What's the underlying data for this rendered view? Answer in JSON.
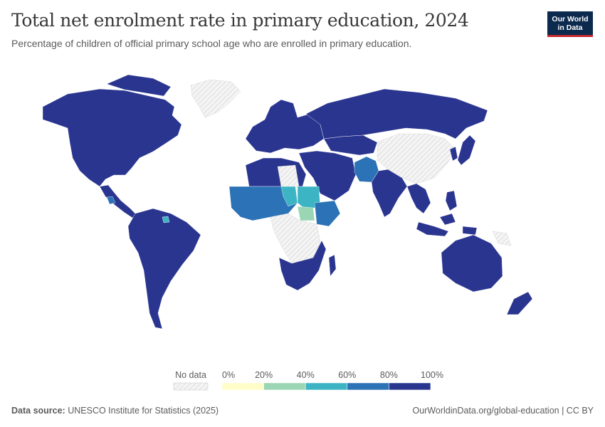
{
  "header": {
    "title": "Total net enrolment rate in primary education, 2024",
    "subtitle": "Percentage of children of official primary school age who are enrolled in primary education."
  },
  "logo": {
    "line1": "Our World",
    "line2": "in Data"
  },
  "legend": {
    "no_data_label": "No data",
    "ticks": [
      "0%",
      "20%",
      "40%",
      "60%",
      "80%",
      "100%"
    ],
    "colors": [
      "#fffdc8",
      "#9ad6b4",
      "#3db4c4",
      "#2b72b6",
      "#2a3590"
    ],
    "no_data_color": "#e8e8e8"
  },
  "map_data": {
    "type": "choropleth",
    "year": 2024,
    "unit": "%",
    "bins": [
      0,
      20,
      40,
      60,
      80,
      100
    ],
    "highlight_regions": [
      {
        "name": "West Africa",
        "bin": "60-80%"
      },
      {
        "name": "Sudan",
        "bin": "40-60%"
      },
      {
        "name": "South Sudan",
        "bin": "20-40%"
      },
      {
        "name": "Pakistan",
        "bin": "60-80%"
      },
      {
        "name": "Afghanistan",
        "bin": "60-80%"
      }
    ],
    "no_data_regions": [
      "Greenland",
      "China",
      "Libya",
      "Central Africa",
      "Papua New Guinea"
    ]
  },
  "footer": {
    "source_label": "Data source:",
    "source_text": "UNESCO Institute for Statistics (2025)",
    "url": "OurWorldinData.org/global-education | CC BY"
  }
}
